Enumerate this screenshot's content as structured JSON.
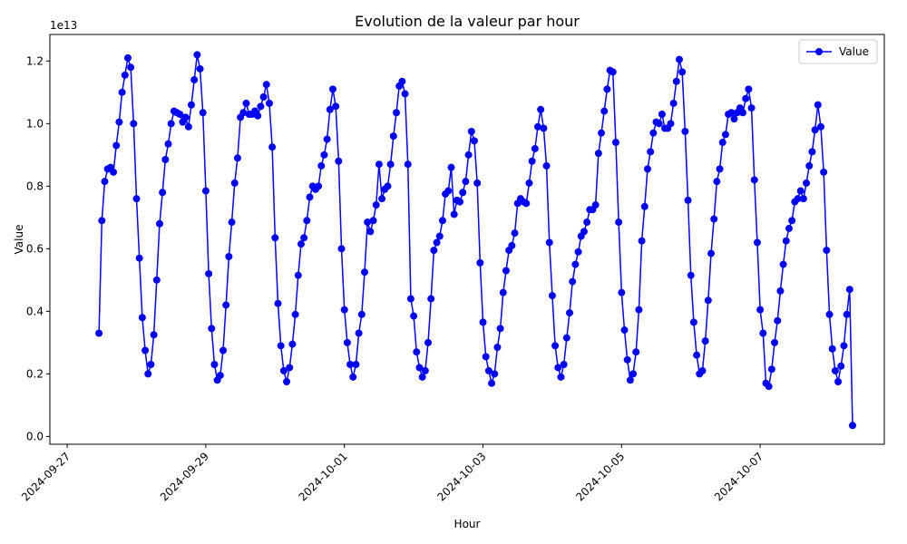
{
  "chart_data": {
    "type": "line",
    "title": "Evolution de la valeur par hour",
    "x_label": "Hour",
    "y_label": "Value",
    "y_offset_label": "1e13",
    "x": [
      "2024-09-27 11:00",
      "2024-09-27 12:00",
      "2024-09-27 13:00",
      "2024-09-27 14:00",
      "2024-09-27 15:00",
      "2024-09-27 16:00",
      "2024-09-27 17:00",
      "2024-09-27 18:00",
      "2024-09-27 19:00",
      "2024-09-27 20:00",
      "2024-09-27 21:00",
      "2024-09-27 22:00",
      "2024-09-27 23:00",
      "2024-09-28 00:00",
      "2024-09-28 01:00",
      "2024-09-28 02:00",
      "2024-09-28 03:00",
      "2024-09-28 04:00",
      "2024-09-28 05:00",
      "2024-09-28 06:00",
      "2024-09-28 07:00",
      "2024-09-28 08:00",
      "2024-09-28 09:00",
      "2024-09-28 10:00",
      "2024-09-28 11:00",
      "2024-09-28 12:00",
      "2024-09-28 13:00",
      "2024-09-28 14:00",
      "2024-09-28 15:00",
      "2024-09-28 16:00",
      "2024-09-28 17:00",
      "2024-09-28 18:00",
      "2024-09-28 19:00",
      "2024-09-28 20:00",
      "2024-09-28 21:00",
      "2024-09-28 22:00",
      "2024-09-28 23:00",
      "2024-09-29 00:00",
      "2024-09-29 01:00",
      "2024-09-29 02:00",
      "2024-09-29 03:00",
      "2024-09-29 04:00",
      "2024-09-29 05:00",
      "2024-09-29 06:00",
      "2024-09-29 07:00",
      "2024-09-29 08:00",
      "2024-09-29 09:00",
      "2024-09-29 10:00",
      "2024-09-29 11:00",
      "2024-09-29 12:00",
      "2024-09-29 13:00",
      "2024-09-29 14:00",
      "2024-09-29 15:00",
      "2024-09-29 16:00",
      "2024-09-29 17:00",
      "2024-09-29 18:00",
      "2024-09-29 19:00",
      "2024-09-29 20:00",
      "2024-09-29 21:00",
      "2024-09-29 22:00",
      "2024-09-29 23:00",
      "2024-09-30 00:00",
      "2024-09-30 01:00",
      "2024-09-30 02:00",
      "2024-09-30 03:00",
      "2024-09-30 04:00",
      "2024-09-30 05:00",
      "2024-09-30 06:00",
      "2024-09-30 07:00",
      "2024-09-30 08:00",
      "2024-09-30 09:00",
      "2024-09-30 10:00",
      "2024-09-30 11:00",
      "2024-09-30 12:00",
      "2024-09-30 13:00",
      "2024-09-30 14:00",
      "2024-09-30 15:00",
      "2024-09-30 16:00",
      "2024-09-30 17:00",
      "2024-09-30 18:00",
      "2024-09-30 19:00",
      "2024-09-30 20:00",
      "2024-09-30 21:00",
      "2024-09-30 22:00",
      "2024-09-30 23:00",
      "2024-10-01 00:00",
      "2024-10-01 01:00",
      "2024-10-01 02:00",
      "2024-10-01 03:00",
      "2024-10-01 04:00",
      "2024-10-01 05:00",
      "2024-10-01 06:00",
      "2024-10-01 07:00",
      "2024-10-01 08:00",
      "2024-10-01 09:00",
      "2024-10-01 10:00",
      "2024-10-01 11:00",
      "2024-10-01 12:00",
      "2024-10-01 13:00",
      "2024-10-01 14:00",
      "2024-10-01 15:00",
      "2024-10-01 16:00",
      "2024-10-01 17:00",
      "2024-10-01 18:00",
      "2024-10-01 19:00",
      "2024-10-01 20:00",
      "2024-10-01 21:00",
      "2024-10-01 22:00",
      "2024-10-01 23:00",
      "2024-10-02 00:00",
      "2024-10-02 01:00",
      "2024-10-02 02:00",
      "2024-10-02 03:00",
      "2024-10-02 04:00",
      "2024-10-02 05:00",
      "2024-10-02 06:00",
      "2024-10-02 07:00",
      "2024-10-02 08:00",
      "2024-10-02 09:00",
      "2024-10-02 10:00",
      "2024-10-02 11:00",
      "2024-10-02 12:00",
      "2024-10-02 13:00",
      "2024-10-02 14:00",
      "2024-10-02 15:00",
      "2024-10-02 16:00",
      "2024-10-02 17:00",
      "2024-10-02 18:00",
      "2024-10-02 19:00",
      "2024-10-02 20:00",
      "2024-10-02 21:00",
      "2024-10-02 22:00",
      "2024-10-02 23:00",
      "2024-10-03 00:00",
      "2024-10-03 01:00",
      "2024-10-03 02:00",
      "2024-10-03 03:00",
      "2024-10-03 04:00",
      "2024-10-03 05:00",
      "2024-10-03 06:00",
      "2024-10-03 07:00",
      "2024-10-03 08:00",
      "2024-10-03 09:00",
      "2024-10-03 10:00",
      "2024-10-03 11:00",
      "2024-10-03 12:00",
      "2024-10-03 13:00",
      "2024-10-03 14:00",
      "2024-10-03 15:00",
      "2024-10-03 16:00",
      "2024-10-03 17:00",
      "2024-10-03 18:00",
      "2024-10-03 19:00",
      "2024-10-03 20:00",
      "2024-10-03 21:00",
      "2024-10-03 22:00",
      "2024-10-03 23:00",
      "2024-10-04 00:00",
      "2024-10-04 01:00",
      "2024-10-04 02:00",
      "2024-10-04 03:00",
      "2024-10-04 04:00",
      "2024-10-04 05:00",
      "2024-10-04 06:00",
      "2024-10-04 07:00",
      "2024-10-04 08:00",
      "2024-10-04 09:00",
      "2024-10-04 10:00",
      "2024-10-04 11:00",
      "2024-10-04 12:00",
      "2024-10-04 13:00",
      "2024-10-04 14:00",
      "2024-10-04 15:00",
      "2024-10-04 16:00",
      "2024-10-04 17:00",
      "2024-10-04 18:00",
      "2024-10-04 19:00",
      "2024-10-04 20:00",
      "2024-10-04 21:00",
      "2024-10-04 22:00",
      "2024-10-04 23:00",
      "2024-10-05 00:00",
      "2024-10-05 01:00",
      "2024-10-05 02:00",
      "2024-10-05 03:00",
      "2024-10-05 04:00",
      "2024-10-05 05:00",
      "2024-10-05 06:00",
      "2024-10-05 07:00",
      "2024-10-05 08:00",
      "2024-10-05 09:00",
      "2024-10-05 10:00",
      "2024-10-05 11:00",
      "2024-10-05 12:00",
      "2024-10-05 13:00",
      "2024-10-05 14:00",
      "2024-10-05 15:00",
      "2024-10-05 16:00",
      "2024-10-05 17:00",
      "2024-10-05 18:00",
      "2024-10-05 19:00",
      "2024-10-05 20:00",
      "2024-10-05 21:00",
      "2024-10-05 22:00",
      "2024-10-05 23:00",
      "2024-10-06 00:00",
      "2024-10-06 01:00",
      "2024-10-06 02:00",
      "2024-10-06 03:00",
      "2024-10-06 04:00",
      "2024-10-06 05:00",
      "2024-10-06 06:00",
      "2024-10-06 07:00",
      "2024-10-06 08:00",
      "2024-10-06 09:00",
      "2024-10-06 10:00",
      "2024-10-06 11:00",
      "2024-10-06 12:00",
      "2024-10-06 13:00",
      "2024-10-06 14:00",
      "2024-10-06 15:00",
      "2024-10-06 16:00",
      "2024-10-06 17:00",
      "2024-10-06 18:00",
      "2024-10-06 19:00",
      "2024-10-06 20:00",
      "2024-10-06 21:00",
      "2024-10-06 22:00",
      "2024-10-06 23:00",
      "2024-10-07 00:00",
      "2024-10-07 01:00",
      "2024-10-07 02:00",
      "2024-10-07 03:00",
      "2024-10-07 04:00",
      "2024-10-07 05:00",
      "2024-10-07 06:00",
      "2024-10-07 07:00",
      "2024-10-07 08:00",
      "2024-10-07 09:00",
      "2024-10-07 10:00",
      "2024-10-07 11:00",
      "2024-10-07 12:00",
      "2024-10-07 13:00",
      "2024-10-07 14:00",
      "2024-10-07 15:00",
      "2024-10-07 16:00",
      "2024-10-07 17:00",
      "2024-10-07 18:00",
      "2024-10-07 19:00",
      "2024-10-07 20:00",
      "2024-10-07 21:00",
      "2024-10-07 22:00",
      "2024-10-07 23:00",
      "2024-10-08 00:00",
      "2024-10-08 01:00",
      "2024-10-08 02:00",
      "2024-10-08 03:00",
      "2024-10-08 04:00",
      "2024-10-08 05:00",
      "2024-10-08 06:00",
      "2024-10-08 07:00",
      "2024-10-08 08:00"
    ],
    "series": [
      {
        "name": "Value",
        "color": "#0000ff",
        "values": [
          0.33,
          0.69,
          0.815,
          0.855,
          0.86,
          0.845,
          0.93,
          1.005,
          1.1,
          1.155,
          1.21,
          1.18,
          1.0,
          0.76,
          0.57,
          0.38,
          0.275,
          0.2,
          0.23,
          0.325,
          0.5,
          0.68,
          0.78,
          0.885,
          0.935,
          1.0,
          1.04,
          1.035,
          1.03,
          1.005,
          1.02,
          0.99,
          1.06,
          1.14,
          1.22,
          1.175,
          1.035,
          0.785,
          0.52,
          0.345,
          0.23,
          0.18,
          0.195,
          0.275,
          0.42,
          0.575,
          0.685,
          0.81,
          0.89,
          1.02,
          1.035,
          1.065,
          1.03,
          1.03,
          1.04,
          1.025,
          1.055,
          1.085,
          1.125,
          1.065,
          0.925,
          0.635,
          0.425,
          0.29,
          0.21,
          0.175,
          0.22,
          0.295,
          0.39,
          0.515,
          0.615,
          0.635,
          0.69,
          0.765,
          0.8,
          0.79,
          0.8,
          0.865,
          0.9,
          0.95,
          1.045,
          1.11,
          1.055,
          0.88,
          0.6,
          0.405,
          0.3,
          0.23,
          0.19,
          0.23,
          0.33,
          0.39,
          0.525,
          0.685,
          0.655,
          0.69,
          0.74,
          0.87,
          0.76,
          0.79,
          0.8,
          0.87,
          0.96,
          1.035,
          1.12,
          1.135,
          1.095,
          0.87,
          0.44,
          0.385,
          0.27,
          0.22,
          0.19,
          0.21,
          0.3,
          0.44,
          0.595,
          0.62,
          0.64,
          0.69,
          0.775,
          0.785,
          0.86,
          0.71,
          0.755,
          0.75,
          0.78,
          0.815,
          0.9,
          0.975,
          0.945,
          0.81,
          0.555,
          0.365,
          0.255,
          0.21,
          0.17,
          0.2,
          0.285,
          0.345,
          0.46,
          0.53,
          0.595,
          0.61,
          0.65,
          0.745,
          0.76,
          0.75,
          0.745,
          0.81,
          0.88,
          0.92,
          0.99,
          1.045,
          0.985,
          0.865,
          0.62,
          0.45,
          0.29,
          0.22,
          0.19,
          0.23,
          0.315,
          0.395,
          0.495,
          0.55,
          0.59,
          0.64,
          0.655,
          0.685,
          0.725,
          0.725,
          0.74,
          0.905,
          0.97,
          1.04,
          1.11,
          1.17,
          1.165,
          0.94,
          0.685,
          0.46,
          0.34,
          0.245,
          0.18,
          0.2,
          0.27,
          0.405,
          0.625,
          0.735,
          0.855,
          0.91,
          0.97,
          1.005,
          1.0,
          1.03,
          0.985,
          0.985,
          1.0,
          1.065,
          1.135,
          1.205,
          1.165,
          0.975,
          0.755,
          0.515,
          0.365,
          0.26,
          0.2,
          0.21,
          0.305,
          0.435,
          0.585,
          0.695,
          0.815,
          0.855,
          0.94,
          0.965,
          1.03,
          1.035,
          1.015,
          1.035,
          1.05,
          1.035,
          1.08,
          1.11,
          1.05,
          0.82,
          0.62,
          0.405,
          0.33,
          0.17,
          0.16,
          0.215,
          0.3,
          0.37,
          0.465,
          0.55,
          0.625,
          0.665,
          0.69,
          0.75,
          0.76,
          0.785,
          0.76,
          0.81,
          0.865,
          0.91,
          0.98,
          1.06,
          0.99,
          0.845,
          0.595,
          0.39,
          0.28,
          0.21,
          0.175,
          0.225,
          0.29,
          0.39,
          0.47,
          0.035
        ]
      }
    ],
    "xlim": [
      "2024-09-26 18:00",
      "2024-10-08 19:00"
    ],
    "xticks": [
      "2024-09-27",
      "2024-09-29",
      "2024-10-01",
      "2024-10-03",
      "2024-10-05",
      "2024-10-07"
    ],
    "ylim": [
      -0.025,
      1.285
    ],
    "yticks": [
      {
        "value": 0,
        "label": "0.0"
      },
      0.2,
      0.4,
      0.6,
      0.8,
      {
        "value": 1,
        "label": "1.0"
      },
      1.2
    ],
    "grid": false,
    "legend": "upper right"
  }
}
